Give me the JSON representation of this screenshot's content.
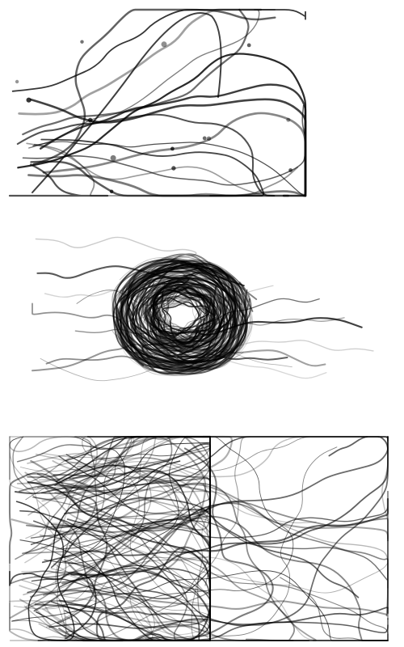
{
  "figure": {
    "background_color": "#ffffff",
    "ink_color": "#000000",
    "panels": [
      {
        "id": "top",
        "style": "sparse trajectories",
        "trace_count": 18,
        "dot_count": 14
      },
      {
        "id": "middle",
        "style": "circular cluster with trailing tails",
        "trace_count": 70
      },
      {
        "id": "bottom",
        "style": "dense tangled trajectories",
        "trace_count": 120
      }
    ]
  }
}
